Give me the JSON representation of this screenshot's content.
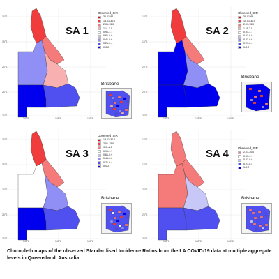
{
  "panels": [
    {
      "id": "sa1",
      "title": "SA 1",
      "legend_title": "Observed_SIR",
      "legend": [
        {
          "label": "30.01-96",
          "color": "#e8000b"
        },
        {
          "label": "15.01-30.0",
          "color": "#f03c3c"
        },
        {
          "label": "2.01-15.0",
          "color": "#f57a7a"
        },
        {
          "label": "1.11-2.0",
          "color": "#f8b0b0"
        },
        {
          "label": "0.91-1.1",
          "color": "#ffffff"
        },
        {
          "label": "0.61-0.9",
          "color": "#c8c8f8"
        },
        {
          "label": "0.41-0.6",
          "color": "#8f8ff5"
        },
        {
          "label": "0.21-0.4",
          "color": "#5050f0"
        },
        {
          "label": "0-0.2",
          "color": "#0000ee"
        }
      ],
      "inset_label": "Brisbane",
      "fills": [
        "#f03c3c",
        "#f57a7a",
        "#8f8ff5",
        "#0000ee",
        "#f8b0b0",
        "#5050f0"
      ]
    },
    {
      "id": "sa2",
      "title": "SA 2",
      "legend_title": "Observed_SIR",
      "legend": [
        {
          "label": "30.01-65",
          "color": "#e8000b"
        },
        {
          "label": "15.01-30.0",
          "color": "#f03c3c"
        },
        {
          "label": "2.01-15.0",
          "color": "#f57a7a"
        },
        {
          "label": "1.11-2.0",
          "color": "#f8b0b0"
        },
        {
          "label": "0.91-1.1",
          "color": "#ffffff"
        },
        {
          "label": "0.61-0.9",
          "color": "#c8c8f8"
        },
        {
          "label": "0.41-0.6",
          "color": "#8f8ff5"
        },
        {
          "label": "0.21-0.4",
          "color": "#5050f0"
        },
        {
          "label": "0-0.2",
          "color": "#0000ee"
        }
      ],
      "inset_label": "Brisbane",
      "fills": [
        "#f03c3c",
        "#f57a7a",
        "#0000ee",
        "#0000ee",
        "#8f8ff5",
        "#0000ee"
      ]
    },
    {
      "id": "sa3",
      "title": "SA 3",
      "legend_title": "Observed_SIR",
      "legend": [
        {
          "label": "15.01-30.0",
          "color": "#e8000b"
        },
        {
          "label": "2.01-15.0",
          "color": "#f03c3c"
        },
        {
          "label": "1.11-2.0",
          "color": "#f57a7a"
        },
        {
          "label": "0.91-1.1",
          "color": "#ffffff"
        },
        {
          "label": "0.61-0.9",
          "color": "#c8c8f8"
        },
        {
          "label": "0.41-0.6",
          "color": "#8f8ff5"
        },
        {
          "label": "0.21-0.4",
          "color": "#5050f0"
        },
        {
          "label": "0-0.2",
          "color": "#0000ee"
        }
      ],
      "inset_label": "Brisbane",
      "fills": [
        "#f03c3c",
        "#f57a7a",
        "#ffffff",
        "#0000ee",
        "#8f8ff5",
        "#5050f0"
      ]
    },
    {
      "id": "sa4",
      "title": "SA 4",
      "legend_title": "Observed_SIR",
      "legend": [
        {
          "label": "2.01-30.0",
          "color": "#f57a7a"
        },
        {
          "label": "0.91-1.1",
          "color": "#ffffff"
        },
        {
          "label": "0.61-0.9",
          "color": "#c8c8f8"
        },
        {
          "label": "0.21-0.4",
          "color": "#5050f0"
        },
        {
          "label": "0-0.2",
          "color": "#0000ee"
        }
      ],
      "inset_label": "Brisbane",
      "fills": [
        "#f57a7a",
        "#f57a7a",
        "#f57a7a",
        "#5050f0",
        "#c8c8f8",
        "#5050f0"
      ]
    }
  ],
  "axis": {
    "x_ticks": [
      "140°E",
      "145°E",
      "150°E"
    ],
    "y_ticks": [
      "10°S",
      "15°S",
      "20°S",
      "25°S",
      "30°S"
    ]
  },
  "caption": "Choropleth maps of the observed Standardised Incidence Ratios from the LA COVID-19 data at multiple aggregate levels in Queensland, Australia."
}
